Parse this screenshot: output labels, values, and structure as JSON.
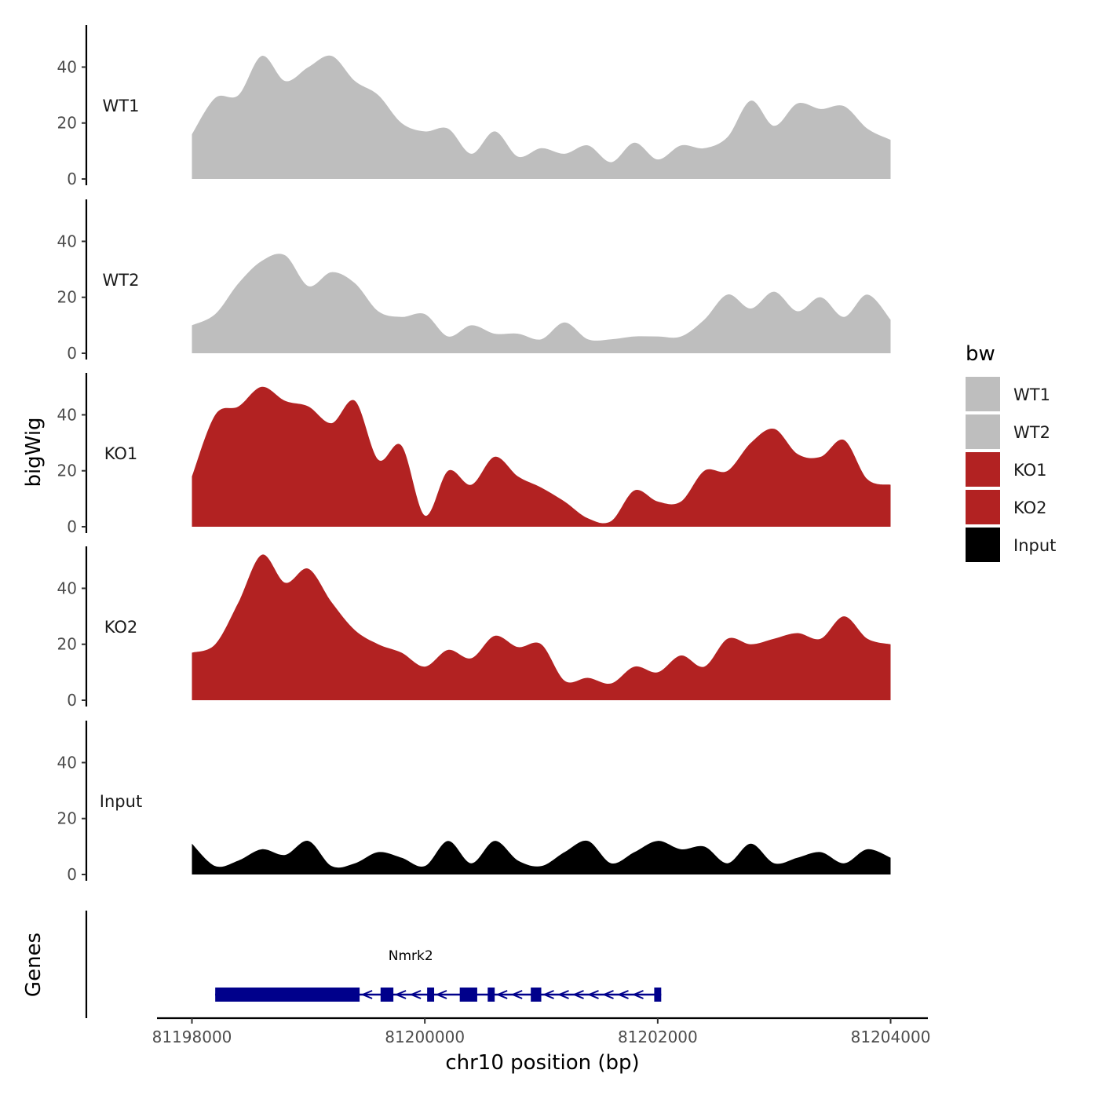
{
  "chart_data": {
    "type": "area",
    "xlabel": "chr10 position (bp)",
    "ylabel": "bigWig",
    "genes_ylabel": "Genes",
    "x_ticks": [
      81198000,
      81200000,
      81202000,
      81204000
    ],
    "x_tick_labels": [
      "81198000",
      "81200000",
      "81202000",
      "81204000"
    ],
    "xlim": [
      81197700,
      81204320
    ],
    "ylim": [
      0,
      55
    ],
    "y_ticks": [
      0,
      20,
      40
    ],
    "y_tick_labels": [
      "0",
      "20",
      "40"
    ],
    "legend": {
      "title": "bw",
      "placement": "right",
      "entries": [
        {
          "label": "WT1",
          "color": "#bebebe"
        },
        {
          "label": "WT2",
          "color": "#bebebe"
        },
        {
          "label": "KO1",
          "color": "#b22222"
        },
        {
          "label": "KO2",
          "color": "#b22222"
        },
        {
          "label": "Input",
          "color": "#000000"
        }
      ]
    },
    "series": [
      {
        "name": "WT1",
        "color": "#bebebe",
        "x": [
          81198000,
          81198200,
          81198400,
          81198600,
          81198800,
          81199000,
          81199200,
          81199400,
          81199600,
          81199800,
          81200000,
          81200200,
          81200400,
          81200600,
          81200800,
          81201000,
          81201200,
          81201400,
          81201600,
          81201800,
          81202000,
          81202200,
          81202400,
          81202600,
          81202800,
          81203000,
          81203200,
          81203400,
          81203600,
          81203800,
          81204000
        ],
        "values": [
          16,
          29,
          30,
          44,
          35,
          40,
          44,
          35,
          30,
          20,
          17,
          18,
          9,
          17,
          8,
          11,
          9,
          12,
          6,
          13,
          7,
          12,
          11,
          15,
          28,
          19,
          27,
          25,
          26,
          18,
          14
        ]
      },
      {
        "name": "WT2",
        "color": "#bebebe",
        "x": [
          81198000,
          81198200,
          81198400,
          81198600,
          81198800,
          81199000,
          81199200,
          81199400,
          81199600,
          81199800,
          81200000,
          81200200,
          81200400,
          81200600,
          81200800,
          81201000,
          81201200,
          81201400,
          81201600,
          81201800,
          81202000,
          81202200,
          81202400,
          81202600,
          81202800,
          81203000,
          81203200,
          81203400,
          81203600,
          81203800,
          81204000
        ],
        "values": [
          10,
          14,
          25,
          33,
          35,
          24,
          29,
          25,
          15,
          13,
          14,
          6,
          10,
          7,
          7,
          5,
          11,
          5,
          5,
          6,
          6,
          6,
          12,
          21,
          16,
          22,
          15,
          20,
          13,
          21,
          12
        ]
      },
      {
        "name": "KO1",
        "color": "#b22222",
        "x": [
          81198000,
          81198200,
          81198400,
          81198600,
          81198800,
          81199000,
          81199200,
          81199400,
          81199600,
          81199800,
          81200000,
          81200200,
          81200400,
          81200600,
          81200800,
          81201000,
          81201200,
          81201400,
          81201600,
          81201800,
          81202000,
          81202200,
          81202400,
          81202600,
          81202800,
          81203000,
          81203200,
          81203400,
          81203600,
          81203800,
          81204000
        ],
        "values": [
          18,
          40,
          43,
          50,
          45,
          43,
          37,
          45,
          24,
          29,
          4,
          20,
          15,
          25,
          18,
          14,
          9,
          3,
          2,
          13,
          9,
          9,
          20,
          20,
          30,
          35,
          26,
          25,
          31,
          17,
          15
        ]
      },
      {
        "name": "KO2",
        "color": "#b22222",
        "x": [
          81198000,
          81198200,
          81198400,
          81198600,
          81198800,
          81199000,
          81199200,
          81199400,
          81199600,
          81199800,
          81200000,
          81200200,
          81200400,
          81200600,
          81200800,
          81201000,
          81201200,
          81201400,
          81201600,
          81201800,
          81202000,
          81202200,
          81202400,
          81202600,
          81202800,
          81203000,
          81203200,
          81203400,
          81203600,
          81203800,
          81204000
        ],
        "values": [
          17,
          20,
          35,
          52,
          42,
          47,
          35,
          25,
          20,
          17,
          12,
          18,
          15,
          23,
          19,
          20,
          7,
          8,
          6,
          12,
          10,
          16,
          12,
          22,
          20,
          22,
          24,
          22,
          30,
          22,
          20
        ]
      },
      {
        "name": "Input",
        "color": "#000000",
        "x": [
          81198000,
          81198200,
          81198400,
          81198600,
          81198800,
          81199000,
          81199200,
          81199400,
          81199600,
          81199800,
          81200000,
          81200200,
          81200400,
          81200600,
          81200800,
          81201000,
          81201200,
          81201400,
          81201600,
          81201800,
          81202000,
          81202200,
          81202400,
          81202600,
          81202800,
          81203000,
          81203200,
          81203400,
          81203600,
          81203800,
          81204000
        ],
        "values": [
          11,
          3,
          5,
          9,
          7,
          12,
          3,
          4,
          8,
          6,
          3,
          12,
          4,
          12,
          5,
          3,
          8,
          12,
          4,
          8,
          12,
          9,
          10,
          4,
          11,
          4,
          6,
          8,
          4,
          9,
          6
        ]
      }
    ],
    "genes": [
      {
        "name": "Nmrk2",
        "start": 81198200,
        "end": 81202030,
        "strand": "-",
        "color": "#00008b",
        "exons": [
          [
            81198200,
            81199440
          ],
          [
            81199620,
            81199730
          ],
          [
            81200020,
            81200080
          ],
          [
            81200300,
            81200450
          ],
          [
            81200540,
            81200600
          ],
          [
            81200910,
            81201000
          ],
          [
            81201970,
            81202030
          ]
        ]
      }
    ]
  }
}
